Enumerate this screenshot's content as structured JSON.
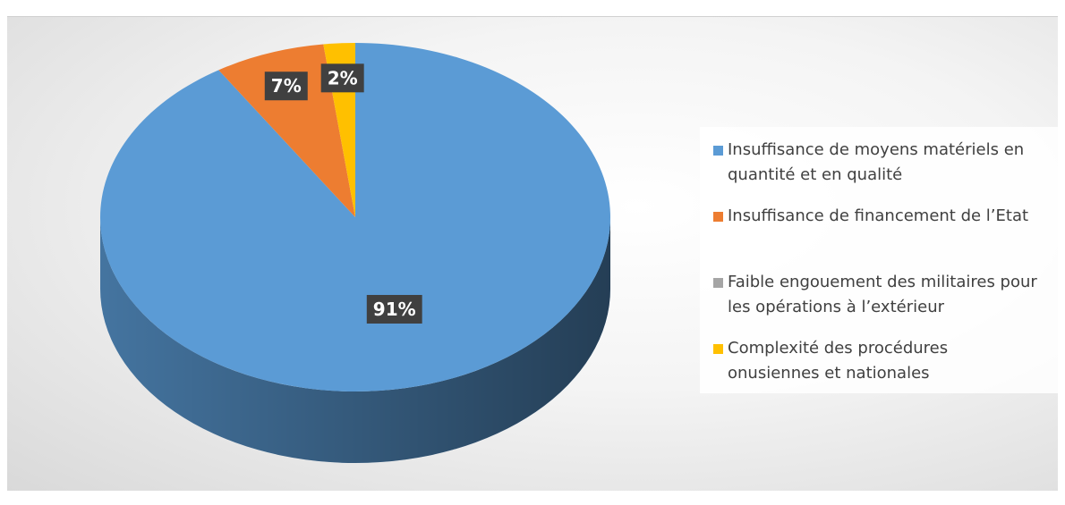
{
  "chart_data": {
    "type": "pie3d",
    "categories": [
      "Insuffisance de moyens matériels en quantité et en qualité",
      "Insuffisance de financement de l’Etat",
      "Faible engouement des militaires pour les opérations à l’extérieur",
      "Complexité des procédures onusiennes et nationales"
    ],
    "values": [
      91,
      7,
      0,
      2
    ],
    "value_labels": [
      "91%",
      "7%",
      null,
      "2%"
    ],
    "colors": [
      "#5b9bd5",
      "#ed7d31",
      "#a5a5a5",
      "#ffc000"
    ],
    "legend": "right"
  }
}
